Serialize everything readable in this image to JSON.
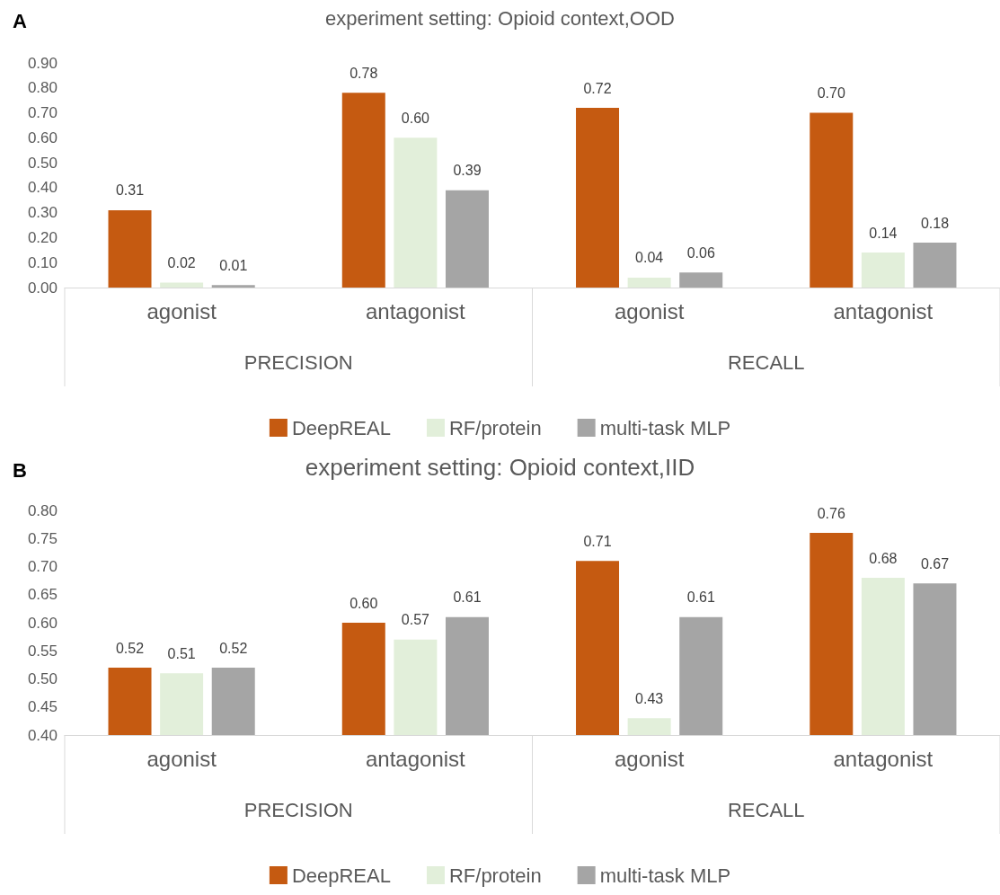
{
  "chart_data": [
    {
      "type": "bar",
      "title": "experiment setting: Opioid context,OOD",
      "annotations": [
        "A",
        "PRECISION",
        "RECALL"
      ],
      "categories": [
        "agonist",
        "antagonist",
        "agonist",
        "antagonist"
      ],
      "series": [
        {
          "name": "DeepREAL",
          "color": "#c55a11",
          "values": [
            0.31,
            0.78,
            0.72,
            0.7
          ],
          "value_labels": [
            "0.31",
            "0.78",
            "0.72",
            "0.70"
          ]
        },
        {
          "name": "RF/protein",
          "color": "#e2efda",
          "values": [
            0.02,
            0.6,
            0.04,
            0.14
          ],
          "value_labels": [
            "0.02",
            "0.60",
            "0.04",
            "0.14"
          ]
        },
        {
          "name": "multi-task MLP",
          "color": "#a5a5a5",
          "values": [
            0.01,
            0.39,
            0.06,
            0.18
          ],
          "value_labels": [
            "0.01",
            "0.39",
            "0.06",
            "0.18"
          ]
        }
      ],
      "ylim": [
        0,
        0.9
      ],
      "yticks": [
        {
          "value": 0,
          "label": "0.00"
        },
        {
          "value": 0.1,
          "label": "0.10"
        },
        {
          "value": 0.2,
          "label": "0.20"
        },
        {
          "value": 0.3,
          "label": "0.30"
        },
        {
          "value": 0.4,
          "label": "0.40"
        },
        {
          "value": 0.5,
          "label": "0.50"
        },
        {
          "value": 0.6,
          "label": "0.60"
        },
        {
          "value": 0.7,
          "label": "0.70"
        },
        {
          "value": 0.8,
          "label": "0.80"
        },
        {
          "value": 0.9,
          "label": "0.90"
        }
      ],
      "grid": false,
      "legend": "bottom"
    },
    {
      "type": "bar",
      "title": "experiment setting: Opioid context,IID",
      "annotations": [
        "B",
        "PRECISION",
        "RECALL"
      ],
      "categories": [
        "agonist",
        "antagonist",
        "agonist",
        "antagonist"
      ],
      "series": [
        {
          "name": "DeepREAL",
          "color": "#c55a11",
          "values": [
            0.52,
            0.6,
            0.71,
            0.76
          ],
          "value_labels": [
            "0.52",
            "0.60",
            "0.71",
            "0.76"
          ]
        },
        {
          "name": "RF/protein",
          "color": "#e2efda",
          "values": [
            0.51,
            0.57,
            0.43,
            0.68
          ],
          "value_labels": [
            "0.51",
            "0.57",
            "0.43",
            "0.68"
          ]
        },
        {
          "name": "multi-task MLP",
          "color": "#a5a5a5",
          "values": [
            0.52,
            0.61,
            0.61,
            0.67
          ],
          "value_labels": [
            "0.52",
            "0.61",
            "0.61",
            "0.67"
          ]
        }
      ],
      "ylim": [
        0.4,
        0.8
      ],
      "yticks": [
        {
          "value": 0.4,
          "label": "0.40"
        },
        {
          "value": 0.45,
          "label": "0.45"
        },
        {
          "value": 0.5,
          "label": "0.50"
        },
        {
          "value": 0.55,
          "label": "0.55"
        },
        {
          "value": 0.6,
          "label": "0.60"
        },
        {
          "value": 0.65,
          "label": "0.65"
        },
        {
          "value": 0.7,
          "label": "0.70"
        },
        {
          "value": 0.75,
          "label": "0.75"
        },
        {
          "value": 0.8,
          "label": "0.80"
        }
      ],
      "grid": false,
      "legend": "bottom"
    }
  ]
}
